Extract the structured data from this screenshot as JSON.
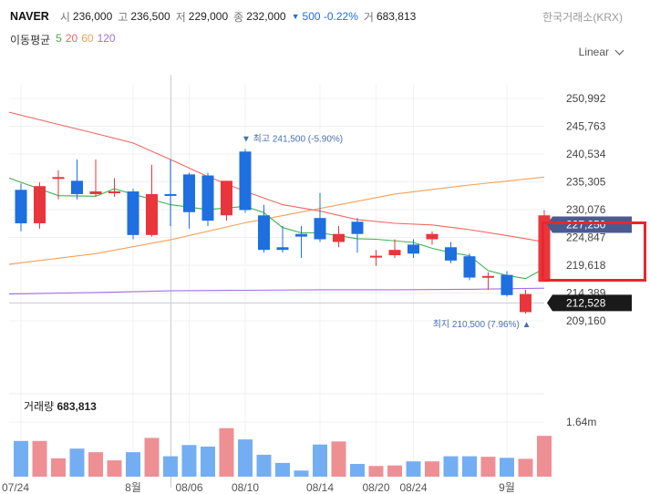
{
  "header": {
    "symbol": "NAVER",
    "open_label": "시",
    "open": "236,000",
    "high_label": "고",
    "high": "236,500",
    "low_label": "저",
    "low": "229,000",
    "close_label": "종",
    "close": "232,000",
    "change": "500 -0.22%",
    "change_arrow": "▼",
    "volume_label": "거",
    "volume": "683,813",
    "exchange": "한국거래소(KRX)"
  },
  "ma_legend": {
    "title": "이동평균",
    "items": [
      {
        "label": "5",
        "color": "#3fb34f"
      },
      {
        "label": "20",
        "color": "#f0695f"
      },
      {
        "label": "60",
        "color": "#f3a058"
      },
      {
        "label": "120",
        "color": "#a46ee8"
      }
    ]
  },
  "scale_selector": {
    "label": "Linear"
  },
  "chart_data": {
    "type": "candlestick",
    "colors": {
      "up": "#e8363c",
      "down": "#1e6fe0",
      "vol_up": "#ee8f94",
      "vol_down": "#74aef2"
    },
    "price_axis": {
      "ticks": [
        "250,992",
        "245,763",
        "240,534",
        "235,305",
        "230,076",
        "224,847",
        "219,618",
        "214,389",
        "209,160"
      ],
      "tick_values": [
        250992,
        245763,
        240534,
        235305,
        230076,
        224847,
        219618,
        214389,
        209160
      ]
    },
    "x_axis_labels": [
      {
        "label": "07/24",
        "index": 0
      },
      {
        "label": "8월",
        "index": 6
      },
      {
        "label": "08/06",
        "index": 9
      },
      {
        "label": "08/10",
        "index": 12
      },
      {
        "label": "08/14",
        "index": 16
      },
      {
        "label": "08/20",
        "index": 19
      },
      {
        "label": "08/24",
        "index": 21
      },
      {
        "label": "9월",
        "index": 26
      }
    ],
    "candles": [
      {
        "o": 233800,
        "h": 235000,
        "l": 226000,
        "c": 227500
      },
      {
        "o": 227500,
        "h": 235200,
        "l": 226500,
        "c": 234500
      },
      {
        "o": 236000,
        "h": 237500,
        "l": 232000,
        "c": 236200
      },
      {
        "o": 235500,
        "h": 239500,
        "l": 232000,
        "c": 233000
      },
      {
        "o": 233000,
        "h": 239500,
        "l": 232500,
        "c": 233500
      },
      {
        "o": 233500,
        "h": 236000,
        "l": 232500,
        "c": 233500
      },
      {
        "o": 233500,
        "h": 234000,
        "l": 224500,
        "c": 225300
      },
      {
        "o": 225300,
        "h": 238500,
        "l": 225000,
        "c": 233000
      },
      {
        "o": 233000,
        "h": 239500,
        "l": 227000,
        "c": 232800
      },
      {
        "o": 236700,
        "h": 237000,
        "l": 226500,
        "c": 229600
      },
      {
        "o": 236500,
        "h": 237000,
        "l": 227000,
        "c": 228000
      },
      {
        "o": 229000,
        "h": 235500,
        "l": 228000,
        "c": 235500
      },
      {
        "o": 241000,
        "h": 241500,
        "l": 229500,
        "c": 230000
      },
      {
        "o": 229000,
        "h": 231000,
        "l": 222000,
        "c": 222500
      },
      {
        "o": 223000,
        "h": 227000,
        "l": 222000,
        "c": 222500
      },
      {
        "o": 225500,
        "h": 227000,
        "l": 221000,
        "c": 225000
      },
      {
        "o": 228500,
        "h": 233200,
        "l": 224000,
        "c": 224500
      },
      {
        "o": 224000,
        "h": 227000,
        "l": 223000,
        "c": 225500
      },
      {
        "o": 227800,
        "h": 228500,
        "l": 222000,
        "c": 225500
      },
      {
        "o": 221400,
        "h": 222500,
        "l": 219500,
        "c": 221400
      },
      {
        "o": 221500,
        "h": 224500,
        "l": 221000,
        "c": 222500
      },
      {
        "o": 223500,
        "h": 224500,
        "l": 221000,
        "c": 221800
      },
      {
        "o": 224500,
        "h": 226000,
        "l": 223500,
        "c": 225500
      },
      {
        "o": 223000,
        "h": 224000,
        "l": 220000,
        "c": 220500
      },
      {
        "o": 221300,
        "h": 221800,
        "l": 216800,
        "c": 217300
      },
      {
        "o": 217600,
        "h": 218300,
        "l": 215000,
        "c": 217600
      },
      {
        "o": 217800,
        "h": 218500,
        "l": 213700,
        "c": 214000
      },
      {
        "o": 210800,
        "h": 215000,
        "l": 210500,
        "c": 214200
      },
      {
        "o": 216500,
        "h": 230000,
        "l": 216500,
        "c": 229000
      }
    ],
    "volume_ratio": [
      0.7,
      0.7,
      0.36,
      0.55,
      0.48,
      0.32,
      0.48,
      0.76,
      0.4,
      0.62,
      0.59,
      0.95,
      0.73,
      0.43,
      0.27,
      0.12,
      0.63,
      0.69,
      0.25,
      0.21,
      0.22,
      0.3,
      0.3,
      0.4,
      0.4,
      0.39,
      0.37,
      0.35,
      0.8
    ],
    "volume_axis": {
      "label": "1.64m",
      "ratio": 1.07
    },
    "volume_title": {
      "label": "거래량",
      "value": "683,813"
    },
    "moving_averages": {
      "ma5": [
        [
          0,
          236000
        ],
        [
          2,
          232700
        ],
        [
          4,
          232600
        ],
        [
          5,
          234000
        ],
        [
          7,
          232000
        ],
        [
          8,
          231000
        ],
        [
          10,
          230100
        ],
        [
          12,
          230700
        ],
        [
          13,
          229500
        ],
        [
          14,
          226700
        ],
        [
          15,
          225700
        ],
        [
          16,
          225700
        ],
        [
          18,
          224600
        ],
        [
          19,
          224500
        ],
        [
          21,
          223900
        ],
        [
          22,
          222800
        ],
        [
          23,
          222000
        ],
        [
          24,
          221400
        ],
        [
          25,
          218600
        ],
        [
          26,
          217700
        ],
        [
          27,
          217100
        ],
        [
          28,
          219000
        ]
      ],
      "ma20": [
        [
          0,
          248400
        ],
        [
          2,
          246100
        ],
        [
          4,
          244400
        ],
        [
          6,
          242600
        ],
        [
          8,
          239500
        ],
        [
          10,
          236300
        ],
        [
          12,
          233500
        ],
        [
          14,
          231000
        ],
        [
          16,
          229800
        ],
        [
          18,
          228200
        ],
        [
          20,
          227500
        ],
        [
          22,
          227200
        ],
        [
          24,
          226300
        ],
        [
          26,
          225200
        ],
        [
          28,
          224000
        ]
      ],
      "ma60": [
        [
          0,
          219800
        ],
        [
          4,
          221800
        ],
        [
          8,
          224400
        ],
        [
          12,
          227600
        ],
        [
          16,
          230300
        ],
        [
          20,
          233000
        ],
        [
          24,
          234700
        ],
        [
          28,
          236200
        ]
      ],
      "ma120": [
        [
          0,
          214200
        ],
        [
          4,
          214500
        ],
        [
          8,
          214800
        ],
        [
          12,
          214900
        ],
        [
          16,
          215000
        ],
        [
          20,
          215000
        ],
        [
          24,
          215100
        ],
        [
          28,
          215300
        ]
      ]
    },
    "annotations": {
      "high": {
        "text": "최고 241,500 (-5.90%)",
        "arrow": "▼",
        "index": 12,
        "value": 241500
      },
      "low": {
        "text": "최지 210,500 (7.96%)",
        "arrow": "▲",
        "index": 27,
        "value": 210500
      },
      "crosshair_index": 8,
      "current_price": {
        "label": "227,250",
        "value": 227250,
        "color": "#4a5b8f"
      },
      "hover_price": {
        "label": "212,528",
        "value": 212528,
        "color": "#1a1a1a"
      }
    }
  }
}
